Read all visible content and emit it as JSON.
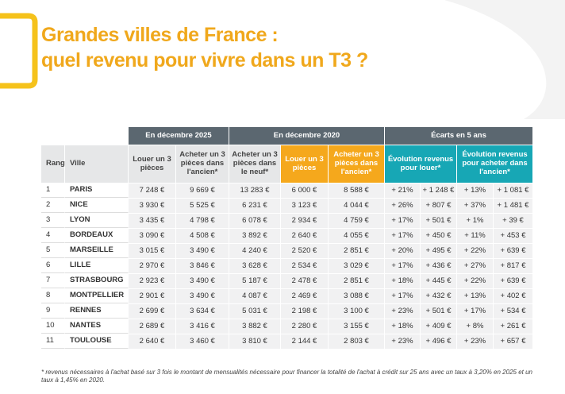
{
  "header": {
    "title_line1": "Grandes villes de France :",
    "title_line2": "quel revenu pour vivre dans un T3 ?"
  },
  "table": {
    "groups": [
      "En décembre 2025",
      "En décembre 2020",
      "Écarts en 5 ans"
    ],
    "columns": [
      "Rang",
      "Ville",
      "Louer un 3 pièces",
      "Acheter un 3 pièces dans l'ancien*",
      "Acheter un 3 pièces dans le neuf*",
      "Louer un 3 pièces",
      "Acheter un 3 pièces dans l'ancien*",
      "Évolution revenus pour louer*",
      "Évolution revenus pour acheter dans l'ancien*"
    ],
    "rows": [
      [
        "1",
        "PARIS",
        "7 248 €",
        "9 669 €",
        "13 283 €",
        "6 000 €",
        "8 588 €",
        "+ 21%",
        "+ 1 248 €",
        "+ 13%",
        "+ 1 081 €"
      ],
      [
        "2",
        "NICE",
        "3 930 €",
        "5 525 €",
        "6 231 €",
        "3 123 €",
        "4 044 €",
        "+ 26%",
        "+ 807 €",
        "+ 37%",
        "+ 1 481 €"
      ],
      [
        "3",
        "LYON",
        "3 435 €",
        "4 798 €",
        "6 078 €",
        "2 934 €",
        "4 759 €",
        "+ 17%",
        "+ 501 €",
        "+ 1%",
        "+ 39 €"
      ],
      [
        "4",
        "BORDEAUX",
        "3 090 €",
        "4 508 €",
        "3 892 €",
        "2 640 €",
        "4 055 €",
        "+ 17%",
        "+ 450 €",
        "+ 11%",
        "+ 453 €"
      ],
      [
        "5",
        "MARSEILLE",
        "3 015 €",
        "3 490 €",
        "4 240 €",
        "2 520 €",
        "2 851 €",
        "+ 20%",
        "+ 495 €",
        "+ 22%",
        "+ 639 €"
      ],
      [
        "6",
        "LILLE",
        "2 970 €",
        "3 846 €",
        "3 628 €",
        "2 534 €",
        "3 029 €",
        "+ 17%",
        "+ 436 €",
        "+ 27%",
        "+ 817 €"
      ],
      [
        "7",
        "STRASBOURG",
        "2 923 €",
        "3 490 €",
        "5 187 €",
        "2 478 €",
        "2 851 €",
        "+ 18%",
        "+ 445 €",
        "+ 22%",
        "+ 639 €"
      ],
      [
        "8",
        "MONTPELLIER",
        "2 901 €",
        "3 490 €",
        "4 087 €",
        "2 469 €",
        "3 088 €",
        "+ 17%",
        "+ 432 €",
        "+ 13%",
        "+ 402 €"
      ],
      [
        "9",
        "RENNES",
        "2 699 €",
        "3 634 €",
        "5 031 €",
        "2 198 €",
        "3 100 €",
        "+ 23%",
        "+ 501 €",
        "+ 17%",
        "+ 534 €"
      ],
      [
        "10",
        "NANTES",
        "2 689 €",
        "3 416 €",
        "3 882 €",
        "2 280 €",
        "3 155 €",
        "+ 18%",
        "+ 409 €",
        "+ 8%",
        "+ 261 €"
      ],
      [
        "11",
        "TOULOUSE",
        "2 640 €",
        "3 460 €",
        "3 810 €",
        "2 144 €",
        "2 803 €",
        "+ 23%",
        "+ 496 €",
        "+ 23%",
        "+ 657 €"
      ]
    ]
  },
  "footnote": "* revenus nécessaires à l'achat basé sur 3 fois le montant de mensualités nécessaire pour financer la totalité de l'achat à crédit sur 25 ans avec un taux à 3,20% en 2025 et un taux à 1,45% en 2020."
}
